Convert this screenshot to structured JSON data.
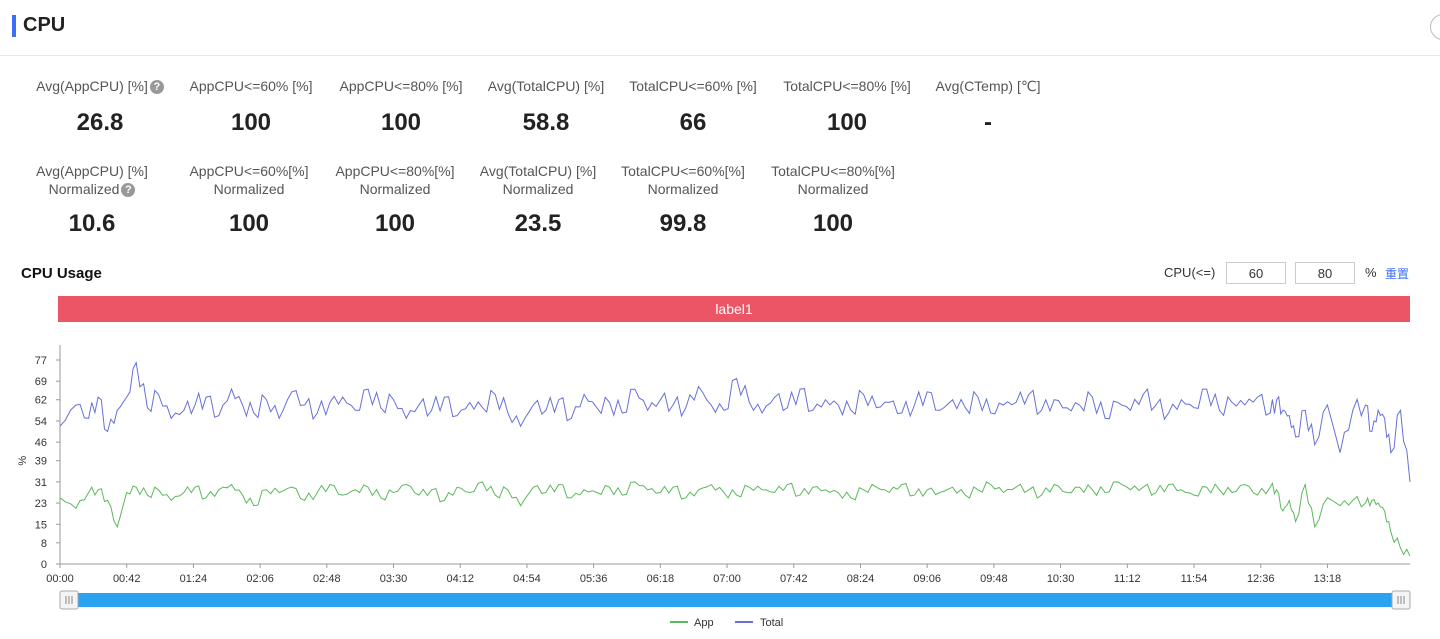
{
  "header": {
    "title": "CPU"
  },
  "stats_row1": [
    {
      "label": "Avg(AppCPU) [%]",
      "value": "26.8",
      "help": true
    },
    {
      "label": "AppCPU<=60% [%]",
      "value": "100"
    },
    {
      "label": "AppCPU<=80% [%]",
      "value": "100"
    },
    {
      "label": "Avg(TotalCPU) [%]",
      "value": "58.8"
    },
    {
      "label": "TotalCPU<=60% [%]",
      "value": "66"
    },
    {
      "label": "TotalCPU<=80% [%]",
      "value": "100"
    },
    {
      "label": "Avg(CTemp) [℃]",
      "value": "-"
    }
  ],
  "stats_row2": [
    {
      "label": "Avg(AppCPU) [%]",
      "label2": "Normalized",
      "value": "10.6",
      "help": true
    },
    {
      "label": "AppCPU<=60%[%]",
      "label2": "Normalized",
      "value": "100"
    },
    {
      "label": "AppCPU<=80%[%]",
      "label2": "Normalized",
      "value": "100"
    },
    {
      "label": "Avg(TotalCPU) [%]",
      "label2": "Normalized",
      "value": "23.5"
    },
    {
      "label": "TotalCPU<=60%[%]",
      "label2": "Normalized",
      "value": "99.8"
    },
    {
      "label": "TotalCPU<=80%[%]",
      "label2": "Normalized",
      "value": "100"
    }
  ],
  "help_glyph": "?",
  "usage": {
    "title": "CPU Usage",
    "cpu_label": "CPU(<=)",
    "threshold_low": "60",
    "threshold_high": "80",
    "pct": "%",
    "reset": "重置",
    "label_bar": "label1"
  },
  "colors": {
    "app": "#5cb85c",
    "total": "#6670d8",
    "accent": "#3b6ff5",
    "label_bar": "#ec5565",
    "slider": "#29a3ef"
  },
  "chart_data": {
    "type": "line",
    "ylabel": "%",
    "ylim": [
      0,
      77
    ],
    "y_ticks": [
      0,
      8,
      15,
      23,
      31,
      39,
      46,
      54,
      62,
      69,
      77
    ],
    "x_ticks": [
      "00:00",
      "00:42",
      "01:24",
      "02:06",
      "02:48",
      "03:30",
      "04:12",
      "04:54",
      "05:36",
      "06:18",
      "07:00",
      "07:42",
      "08:24",
      "09:06",
      "09:48",
      "10:30",
      "11:12",
      "11:54",
      "12:36",
      "13:18"
    ],
    "x_range_minutes": [
      0,
      850
    ],
    "legend_position": "bottom",
    "series": [
      {
        "name": "Total",
        "x": [
          0,
          10,
          18,
          24,
          30,
          36,
          42,
          48,
          55,
          62,
          70,
          78,
          85,
          92,
          100,
          108,
          115,
          122,
          130,
          138,
          146,
          154,
          162,
          170,
          178,
          186,
          194,
          202,
          210,
          218,
          226,
          234,
          242,
          250,
          258,
          266,
          274,
          282,
          290,
          298,
          306,
          314,
          322,
          330,
          338,
          346,
          354,
          362,
          370,
          378,
          386,
          394,
          402,
          410,
          418,
          426,
          434,
          442,
          450,
          458,
          466,
          474,
          482,
          490,
          498,
          506,
          514,
          522,
          530,
          538,
          546,
          554,
          562,
          570,
          578,
          586,
          594,
          602,
          610,
          618,
          626,
          634,
          642,
          650,
          658,
          666,
          674,
          682,
          690,
          698,
          706,
          714,
          722,
          730,
          738,
          746,
          754,
          762,
          766,
          770,
          774,
          778,
          784,
          790,
          798,
          806,
          814,
          822,
          826,
          830,
          834,
          838,
          844,
          850
        ],
        "values": [
          52,
          60,
          55,
          63,
          50,
          58,
          63,
          76,
          59,
          64,
          55,
          58,
          60,
          63,
          56,
          66,
          60,
          57,
          62,
          55,
          65,
          60,
          57,
          61,
          63,
          58,
          66,
          59,
          62,
          55,
          60,
          58,
          63,
          56,
          61,
          59,
          64,
          57,
          52,
          60,
          58,
          62,
          55,
          64,
          59,
          61,
          57,
          66,
          58,
          62,
          60,
          59,
          67,
          60,
          58,
          70,
          61,
          57,
          63,
          59,
          66,
          58,
          62,
          60,
          58,
          64,
          59,
          61,
          57,
          60,
          65,
          58,
          62,
          59,
          63,
          57,
          60,
          61,
          64,
          58,
          62,
          59,
          60,
          63,
          55,
          61,
          58,
          64,
          60,
          57,
          62,
          59,
          66,
          58,
          61,
          60,
          63,
          57,
          62,
          58,
          56,
          48,
          58,
          45,
          60,
          42,
          58,
          60,
          50,
          58,
          55,
          42,
          58,
          31
        ],
        "color": "#6670d8"
      },
      {
        "name": "App",
        "x": [
          0,
          10,
          18,
          24,
          30,
          36,
          42,
          48,
          55,
          62,
          70,
          78,
          85,
          92,
          100,
          108,
          115,
          122,
          130,
          138,
          146,
          154,
          162,
          170,
          178,
          186,
          194,
          202,
          210,
          218,
          226,
          234,
          242,
          250,
          258,
          266,
          274,
          282,
          290,
          298,
          306,
          314,
          322,
          330,
          338,
          346,
          354,
          362,
          370,
          378,
          386,
          394,
          402,
          410,
          418,
          426,
          434,
          442,
          450,
          458,
          466,
          474,
          482,
          490,
          498,
          506,
          514,
          522,
          530,
          538,
          546,
          554,
          562,
          570,
          578,
          586,
          594,
          602,
          610,
          618,
          626,
          634,
          642,
          650,
          658,
          666,
          674,
          682,
          690,
          698,
          706,
          714,
          722,
          730,
          738,
          746,
          754,
          762,
          766,
          770,
          774,
          778,
          784,
          790,
          798,
          806,
          814,
          822,
          826,
          830,
          834,
          838,
          844,
          850
        ],
        "values": [
          25,
          21,
          27,
          28,
          24,
          14,
          27,
          29,
          26,
          28,
          24,
          27,
          29,
          25,
          28,
          30,
          26,
          22,
          28,
          27,
          29,
          24,
          27,
          30,
          26,
          28,
          29,
          25,
          27,
          30,
          26,
          28,
          24,
          29,
          27,
          31,
          26,
          28,
          22,
          29,
          27,
          30,
          25,
          28,
          27,
          29,
          26,
          31,
          28,
          27,
          29,
          25,
          28,
          30,
          27,
          26,
          29,
          28,
          27,
          30,
          26,
          29,
          28,
          27,
          25,
          28,
          29,
          27,
          30,
          26,
          28,
          27,
          29,
          26,
          28,
          30,
          27,
          29,
          28,
          26,
          30,
          27,
          29,
          28,
          27,
          31,
          28,
          29,
          27,
          30,
          28,
          26,
          29,
          28,
          27,
          30,
          26,
          29,
          28,
          20,
          24,
          16,
          30,
          14,
          25,
          22,
          24,
          23,
          24,
          23,
          20,
          12,
          6,
          3
        ],
        "color": "#5cb85c"
      }
    ]
  }
}
